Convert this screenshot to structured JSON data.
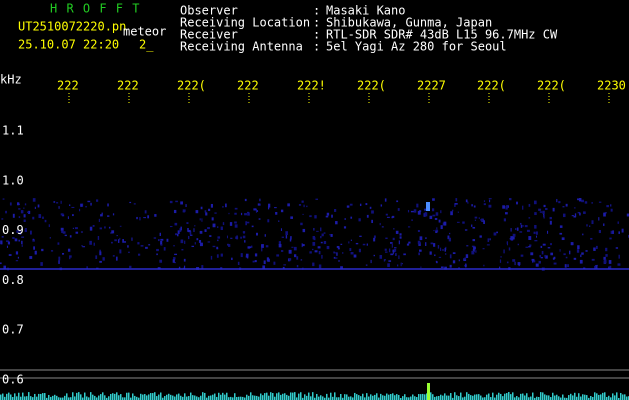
{
  "app_title": "H R O F F T",
  "file_name": "UT2510072220.pn",
  "tag": "meteor",
  "timestamp": "25.10.07 22:20",
  "counter": "2_",
  "info": [
    {
      "label": "Observer",
      "value": "Masaki Kano"
    },
    {
      "label": "Receiving Location",
      "value": "Shibukawa, Gunma, Japan"
    },
    {
      "label": "Receiver",
      "value": "RTL-SDR SDR# 43dB L15 96.7MHz CW"
    },
    {
      "label": "Receiving Antenna",
      "value": "5el Yagi Az 280 for Seoul"
    }
  ],
  "separator": ":",
  "freq_unit": "kHz",
  "time_labels": [
    "222",
    "222",
    "222(",
    "222",
    "222!",
    "222(",
    "2227",
    "222(",
    "222(",
    "2230"
  ],
  "freq_labels": [
    "1.1",
    "1.0",
    "0.9",
    "0.8",
    "0.7",
    "0.6"
  ]
}
